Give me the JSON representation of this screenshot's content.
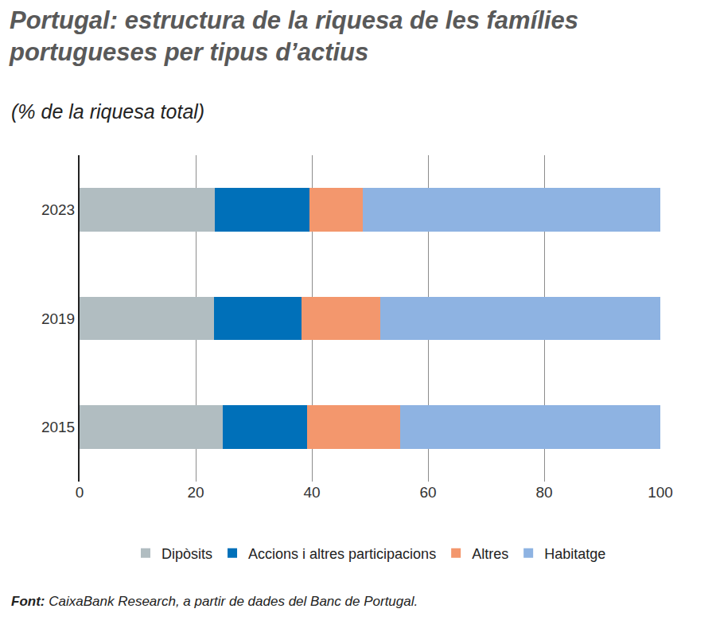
{
  "chart_data": {
    "type": "bar",
    "orientation": "horizontal",
    "stacked": true,
    "title": [
      "Portugal: estructura de la riquesa de les famílies",
      "portugueses per tipus d’actius"
    ],
    "subtitle": "(% de la riquesa total)",
    "source": {
      "label": "Font:",
      "text": "CaixaBank Research, a partir de dades del Banc de Portugal."
    },
    "categories": [
      "2023",
      "2019",
      "2015"
    ],
    "series": [
      {
        "name": "Dipòsits",
        "color": "#b1bdc1",
        "values": [
          23.3,
          23.2,
          24.6
        ]
      },
      {
        "name": "Accions i altres participacions",
        "color": "#0070b9",
        "values": [
          16.3,
          15.0,
          14.6
        ]
      },
      {
        "name": "Altres",
        "color": "#f3976d",
        "values": [
          9.1,
          13.6,
          16.0
        ]
      },
      {
        "name": "Habitatge",
        "color": "#8eb3e2",
        "values": [
          51.3,
          48.2,
          44.8
        ]
      }
    ],
    "xlim": [
      0,
      100
    ],
    "xticks": [
      0,
      20,
      40,
      60,
      80,
      100
    ],
    "grid": true,
    "legend": "bottom"
  }
}
